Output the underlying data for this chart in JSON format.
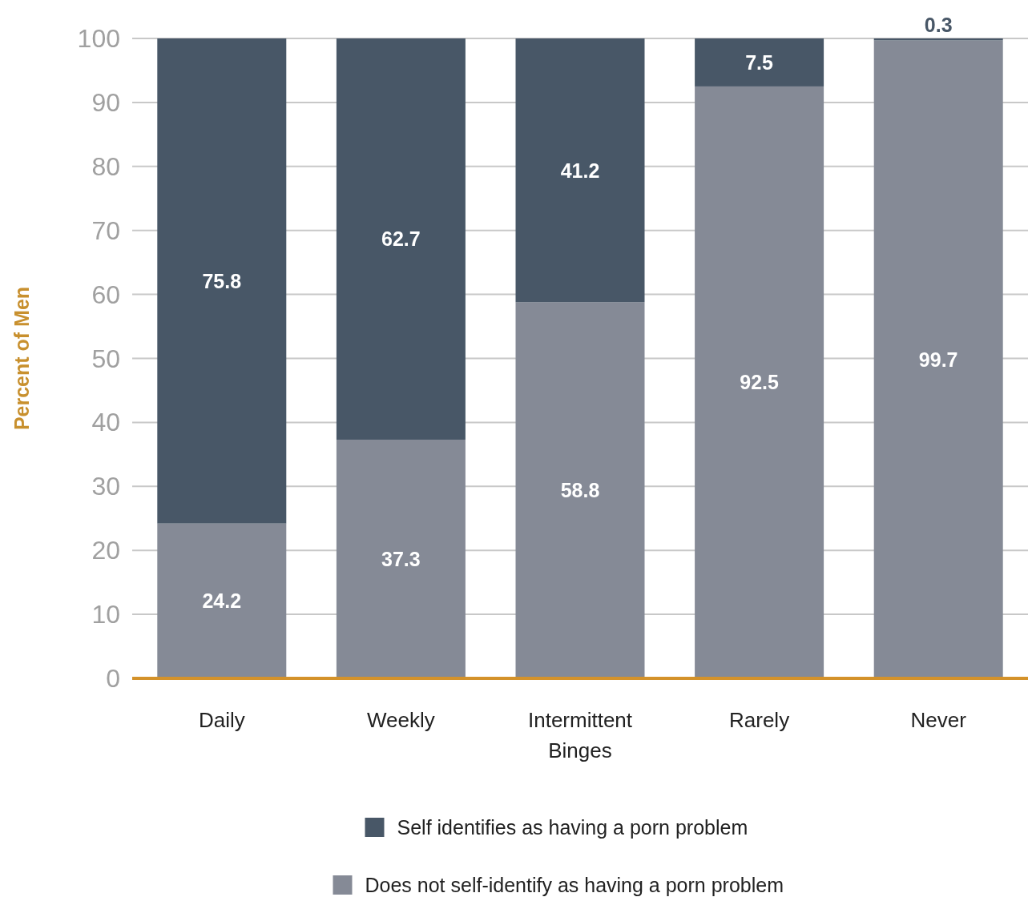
{
  "chart_data": {
    "type": "bar",
    "stacked": true,
    "ylabel": "Percent of Men",
    "categories": [
      "Daily",
      "Weekly",
      "Intermittent Binges",
      "Rarely",
      "Never"
    ],
    "series": [
      {
        "name": "Does not self-identify as having a porn problem",
        "color": "#858a96",
        "values": [
          24.2,
          37.3,
          58.8,
          92.5,
          99.7
        ]
      },
      {
        "name": "Self identifies as having a porn problem",
        "color": "#485767",
        "values": [
          75.8,
          62.7,
          41.2,
          7.5,
          0.3
        ]
      }
    ],
    "ylim": [
      0,
      100
    ],
    "yticks": [
      0,
      10,
      20,
      30,
      40,
      50,
      60,
      70,
      80,
      90,
      100
    ],
    "grid": "y",
    "legend": "bottom",
    "data_labels": true
  }
}
